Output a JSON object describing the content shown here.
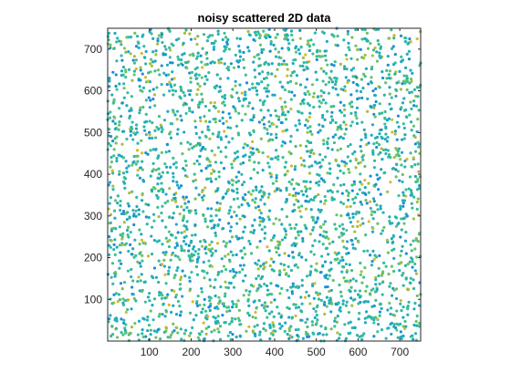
{
  "chart_data": {
    "type": "scatter",
    "title": "noisy scattered 2D data",
    "xlabel": "",
    "ylabel": "",
    "xlim": [
      0,
      750
    ],
    "ylim": [
      0,
      750
    ],
    "x_ticks": [
      100,
      200,
      300,
      400,
      500,
      600,
      700
    ],
    "y_ticks": [
      100,
      200,
      300,
      400,
      500,
      600,
      700
    ],
    "grid": false,
    "legend": "none",
    "colormap": "parula",
    "colormap_colors": [
      "#0072bd",
      "#1a8fd6",
      "#20a8c4",
      "#2cb7a9",
      "#3dbf92",
      "#6bc266",
      "#a5be3c",
      "#d4bb2a"
    ],
    "marker_size": 2.5,
    "point_count": 3000,
    "points": [
      [
        8,
        12,
        0.41
      ],
      [
        22,
        48,
        0.33
      ],
      [
        41,
        31,
        0.52
      ],
      [
        57,
        77,
        0.28
      ],
      [
        73,
        15,
        0.61
      ],
      [
        96,
        58,
        0.37
      ],
      [
        118,
        22,
        0.49
      ],
      [
        134,
        89,
        0.25
      ],
      [
        157,
        41,
        0.68
      ],
      [
        176,
        70,
        0.32
      ],
      [
        199,
        19,
        0.44
      ],
      [
        214,
        95,
        0.57
      ],
      [
        238,
        53,
        0.29
      ],
      [
        256,
        26,
        0.73
      ],
      [
        279,
        84,
        0.35
      ],
      [
        297,
        46,
        0.51
      ],
      [
        318,
        11,
        0.27
      ],
      [
        336,
        67,
        0.62
      ],
      [
        359,
        38,
        0.39
      ],
      [
        377,
        92,
        0.46
      ],
      [
        398,
        24,
        0.31
      ],
      [
        417,
        61,
        0.77
      ],
      [
        439,
        35,
        0.42
      ],
      [
        458,
        81,
        0.26
      ],
      [
        476,
        17,
        0.58
      ],
      [
        497,
        56,
        0.34
      ],
      [
        519,
        88,
        0.48
      ],
      [
        536,
        29,
        0.66
      ],
      [
        558,
        72,
        0.3
      ],
      [
        577,
        43,
        0.53
      ],
      [
        598,
        14,
        0.38
      ],
      [
        616,
        94,
        0.71
      ],
      [
        638,
        51,
        0.27
      ],
      [
        657,
        27,
        0.45
      ],
      [
        679,
        79,
        0.36
      ],
      [
        697,
        39,
        0.59
      ],
      [
        719,
        63,
        0.33
      ],
      [
        738,
        18,
        0.47
      ]
    ]
  }
}
